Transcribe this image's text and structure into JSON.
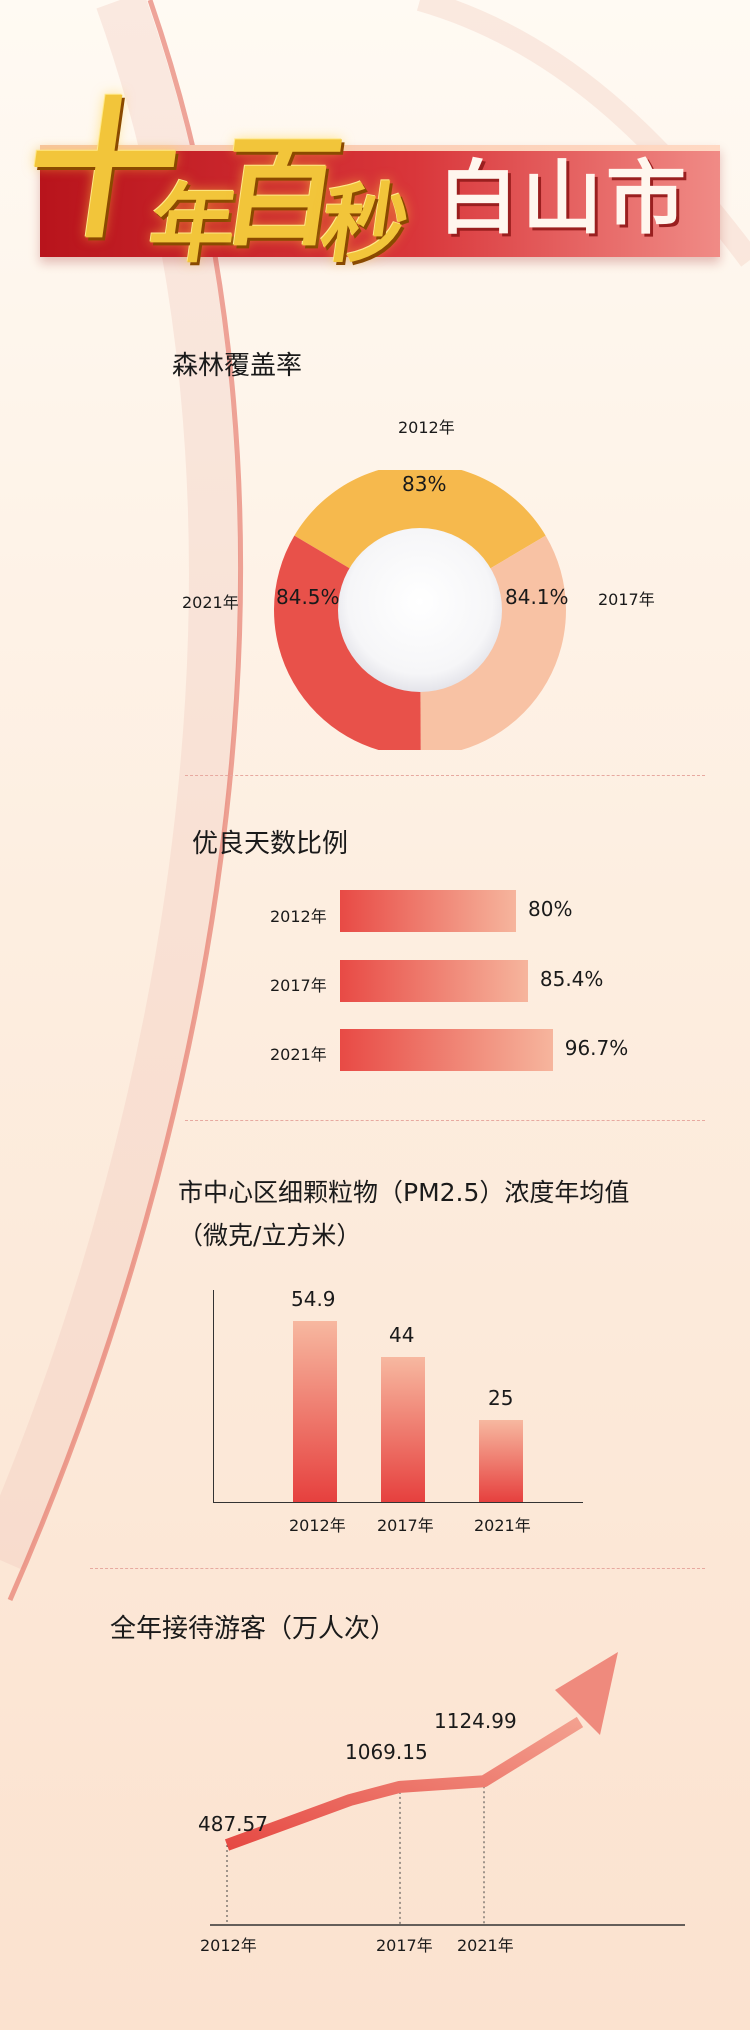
{
  "header": {
    "title_gold": [
      "十",
      "年",
      "百",
      "秒"
    ],
    "title_white": "白山市"
  },
  "forest": {
    "title": "森林覆盖率",
    "labels": [
      "2012年",
      "2017年",
      "2021年"
    ],
    "values": [
      "83%",
      "84.1%",
      "84.5%"
    ]
  },
  "air": {
    "title": "优良天数比例",
    "labels": [
      "2012年",
      "2017年",
      "2021年"
    ],
    "values": [
      "80%",
      "85.4%",
      "96.7%"
    ]
  },
  "pm": {
    "title_line1": "市中心区细颗粒物（PM2.5）浓度年均值",
    "title_line2": "（微克/立方米）",
    "labels": [
      "2012年",
      "2017年",
      "2021年"
    ],
    "values": [
      "54.9",
      "44",
      "25"
    ]
  },
  "tourists": {
    "title": "全年接待游客（万人次）",
    "labels": [
      "2012年",
      "2017年",
      "2021年"
    ],
    "values": [
      "487.57",
      "1069.15",
      "1124.99"
    ]
  },
  "chart_data": [
    {
      "type": "pie",
      "title": "森林覆盖率",
      "categories": [
        "2012年",
        "2017年",
        "2021年"
      ],
      "values": [
        83,
        84.1,
        84.5
      ],
      "colors": [
        "#f6b94d",
        "#f8c2a4",
        "#e8514a"
      ]
    },
    {
      "type": "bar",
      "orientation": "horizontal",
      "title": "优良天数比例",
      "categories": [
        "2012年",
        "2017年",
        "2021年"
      ],
      "values": [
        80,
        85.4,
        96.7
      ]
    },
    {
      "type": "bar",
      "title": "市中心区细颗粒物（PM2.5）浓度年均值（微克/立方米）",
      "categories": [
        "2012年",
        "2017年",
        "2021年"
      ],
      "values": [
        54.9,
        44,
        25
      ]
    },
    {
      "type": "line",
      "title": "全年接待游客（万人次）",
      "categories": [
        "2012年",
        "2017年",
        "2021年"
      ],
      "values": [
        487.57,
        1069.15,
        1124.99
      ]
    }
  ]
}
